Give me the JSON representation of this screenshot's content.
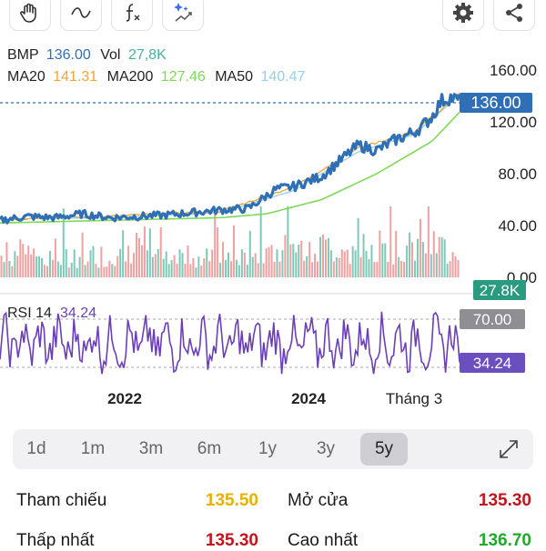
{
  "toolbar": {
    "left_icons": [
      "hand-icon",
      "wave-icon",
      "function-icon",
      "sparkle-chart-icon"
    ],
    "right_icons": [
      "gear-icon",
      "share-icon"
    ]
  },
  "legend": {
    "symbol": "BMP",
    "price": "136.00",
    "vol_label": "Vol",
    "vol": "27,8K",
    "ma20_label": "MA20",
    "ma20": "141.31",
    "ma200_label": "MA200",
    "ma200": "127.46",
    "ma50_label": "MA50",
    "ma50": "140.47",
    "rsi_label": "RSI 14",
    "rsi": "34.24"
  },
  "colors": {
    "price": "#2f6fb5",
    "vol_text": "#48b0a0",
    "ma20": "#f2a43a",
    "ma200": "#7ed957",
    "ma50": "#8fd2ee",
    "rsi": "#6a3fb8",
    "vol_up": "#7fc8b8",
    "vol_down": "#f0a0a0",
    "badge_price": "#2f6fb5",
    "badge_vol": "#2a9a80",
    "badge_grey": "#8e8e93",
    "badge_rsi": "#6a4fbf"
  },
  "badges": {
    "price": "136.00",
    "volume": "27.8K",
    "rsi_upper": "70.00",
    "rsi_value": "34.24"
  },
  "chart_data": {
    "type": "line",
    "title": "",
    "x_range": [
      "2021-01",
      "2025-03"
    ],
    "y_range": [
      0,
      160
    ],
    "y_ticks": [
      "160.00",
      "120.00",
      "80.00",
      "40.00",
      "0.00"
    ],
    "x_ticks": [
      "2022",
      "2024",
      "Tháng 3"
    ],
    "grid": false,
    "series": [
      {
        "name": "BMP",
        "x": [
          "2021-01",
          "2021-04",
          "2021-07",
          "2021-10",
          "2022-01",
          "2022-04",
          "2022-07",
          "2022-10",
          "2023-01",
          "2023-04",
          "2023-07",
          "2023-09",
          "2023-12",
          "2024-02",
          "2024-04",
          "2024-06",
          "2024-08",
          "2024-10",
          "2024-11",
          "2024-12",
          "2025-01",
          "2025-02",
          "2025-03"
        ],
        "y": [
          44,
          47,
          46,
          49,
          46,
          47,
          48,
          50,
          52,
          53,
          68,
          70,
          78,
          90,
          102,
          98,
          106,
          112,
          117,
          124,
          136,
          139,
          136
        ]
      },
      {
        "name": "MA20",
        "x": [
          "2021-01",
          "2022-01",
          "2023-01",
          "2023-09",
          "2024-04",
          "2024-10",
          "2025-03"
        ],
        "y": [
          45,
          47,
          51,
          70,
          100,
          112,
          141.31
        ]
      },
      {
        "name": "MA50",
        "x": [
          "2021-01",
          "2022-01",
          "2023-01",
          "2023-09",
          "2024-04",
          "2024-10",
          "2025-03"
        ],
        "y": [
          45,
          46,
          50,
          67,
          97,
          110,
          140.47
        ]
      },
      {
        "name": "MA200",
        "x": [
          "2021-01",
          "2022-01",
          "2023-01",
          "2023-06",
          "2023-12",
          "2024-06",
          "2024-12",
          "2025-03"
        ],
        "y": [
          42,
          44,
          46,
          49,
          60,
          80,
          105,
          127.46
        ]
      }
    ],
    "rsi": {
      "upper": 70,
      "lower": 30,
      "last": 34.24
    }
  },
  "timeframes": [
    "1d",
    "1m",
    "3m",
    "6m",
    "1y",
    "3y",
    "5y"
  ],
  "active_timeframe": "5y",
  "stats": [
    {
      "label": "Tham chiếu",
      "value": "135.50",
      "color": "#e8b100"
    },
    {
      "label": "Mở cửa",
      "value": "135.30",
      "color": "#c4141b"
    },
    {
      "label": "Thấp nhất",
      "value": "135.30",
      "color": "#c4141b"
    },
    {
      "label": "Cao nhất",
      "value": "136.70",
      "color": "#22a82a"
    }
  ]
}
